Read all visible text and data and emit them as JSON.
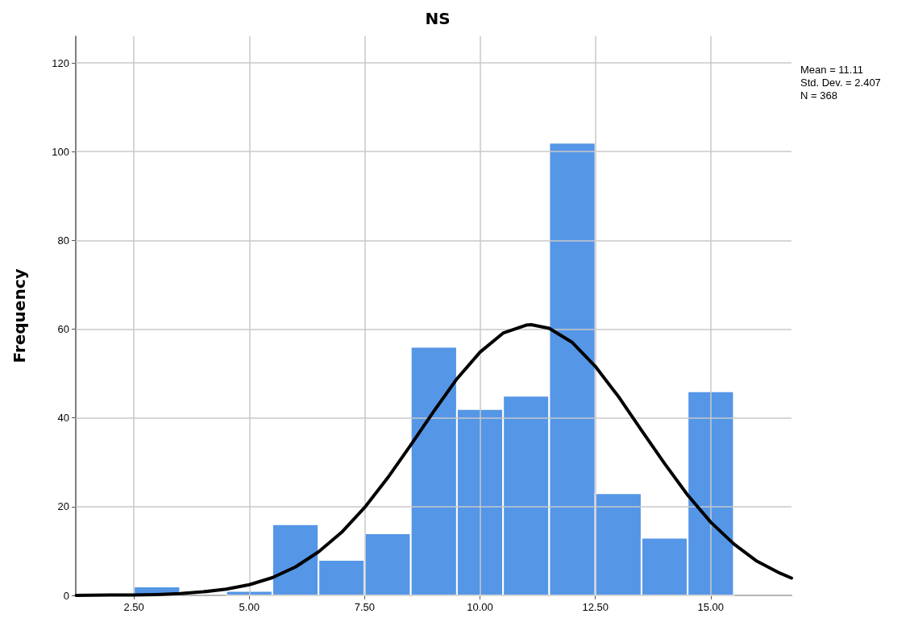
{
  "chart_data": {
    "type": "histogram",
    "title": "NS",
    "ylabel": "Frequency",
    "annotations": [
      "Mean = 11.11",
      "Std. Dev. = 2.407",
      "N = 368"
    ],
    "xlim": [
      1.24,
      16.75
    ],
    "ylim": [
      0,
      126
    ],
    "xticks": [
      {
        "value": 2.5,
        "label": "2.50"
      },
      {
        "value": 5,
        "label": "5.00"
      },
      {
        "value": 7.5,
        "label": "7.50"
      },
      {
        "value": 10,
        "label": "10.00"
      },
      {
        "value": 12.5,
        "label": "12.50"
      },
      {
        "value": 15,
        "label": "15.00"
      }
    ],
    "yticks": [
      0,
      20,
      40,
      60,
      80,
      100,
      120
    ],
    "grid": true,
    "series": [
      {
        "color": "#5596e6",
        "bins": [
          2.5,
          3.5,
          4.5,
          5.5,
          6.5,
          7.5,
          8.5,
          9.5,
          10.5,
          11.5,
          12.5,
          13.5,
          14.5,
          15.5
        ],
        "values": [
          2,
          0,
          1,
          16,
          8,
          14,
          56,
          42,
          45,
          102,
          23,
          13,
          46
        ]
      },
      {
        "type": "line",
        "color": "#000000",
        "marker": "none",
        "line_style": "solid",
        "x": [
          1.25,
          2,
          2.5,
          3,
          3.5,
          4,
          4.5,
          5,
          5.5,
          6,
          6.5,
          7,
          7.5,
          8,
          8.5,
          9,
          9.5,
          10,
          10.5,
          11,
          11.11,
          11.5,
          12,
          12.5,
          13,
          13.5,
          14,
          14.5,
          15,
          15.5,
          16,
          16.5,
          16.75
        ],
        "values": [
          0,
          0.1,
          0.1,
          0.2,
          0.4,
          0.8,
          1.4,
          2.4,
          4,
          6.4,
          9.8,
          14.2,
          19.8,
          26.5,
          33.9,
          41.5,
          48.8,
          54.8,
          59.1,
          60.9,
          61,
          60.2,
          57,
          51.6,
          44.8,
          37.2,
          29.7,
          22.6,
          16.5,
          11.6,
          7.7,
          5,
          3.9
        ]
      }
    ]
  }
}
